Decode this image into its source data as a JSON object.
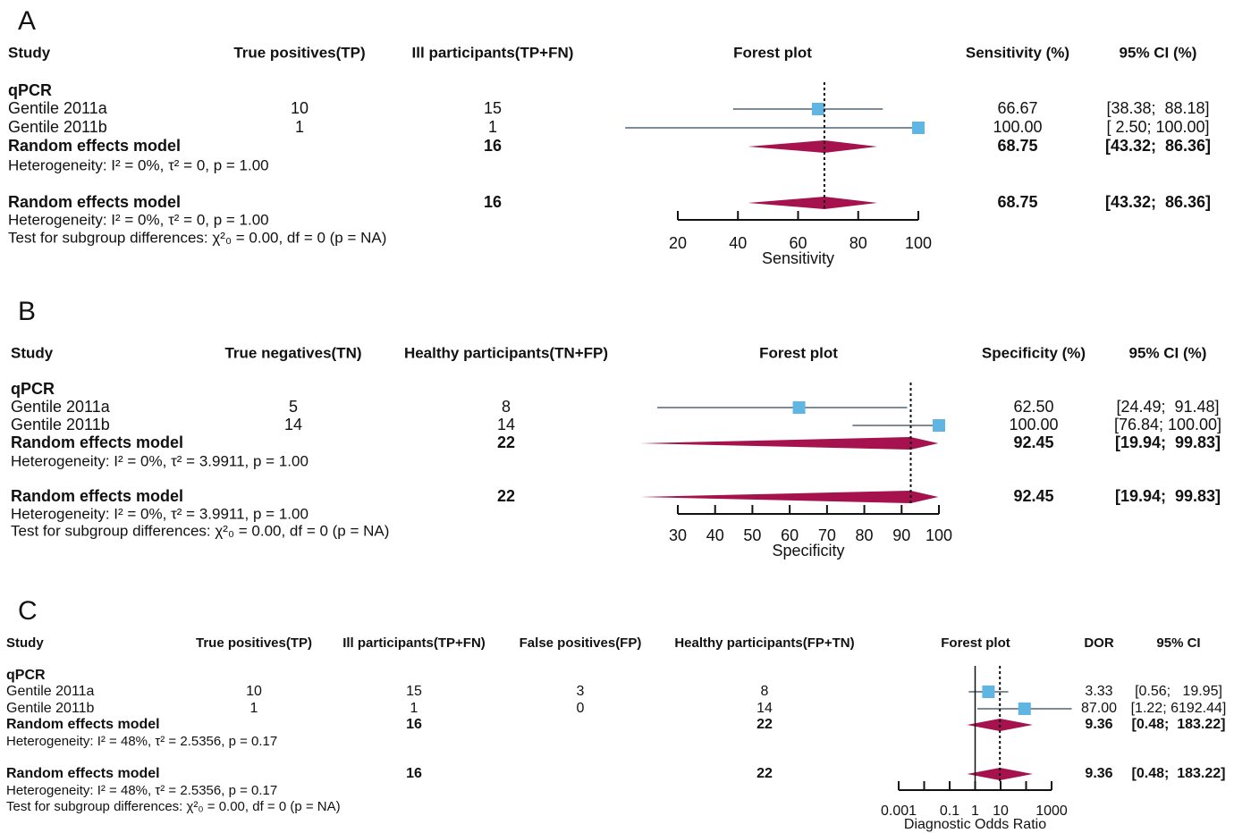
{
  "chart_data": [
    {
      "type": "forest",
      "panel": "A",
      "columns": [
        "Study",
        "True positives(TP)",
        "Ill participants(TP+FN)",
        "Forest plot",
        "Sensitivity (%)",
        "95% CI (%)"
      ],
      "group": "qPCR",
      "studies": [
        {
          "name": "Gentile 2011a",
          "counts": [
            10,
            15
          ],
          "estimate": 66.67,
          "ci": [
            38.38,
            88.18
          ],
          "ci_label": "[38.38;  88.18]"
        },
        {
          "name": "Gentile 2011b",
          "counts": [
            1,
            1
          ],
          "estimate": 100,
          "estimate_label": "100.00",
          "ci": [
            2.5,
            100
          ],
          "ci_label": "[ 2.50; 100.00]"
        }
      ],
      "subgroup": {
        "name": "Random effects model",
        "totals": [
          null,
          16
        ],
        "estimate": 68.75,
        "ci": [
          43.32,
          86.36
        ],
        "ci_label": "[43.32;  86.36]",
        "heterogeneity": "Heterogeneity: I² = 0%, τ² = 0, p = 1.00"
      },
      "overall": {
        "name": "Random effects model",
        "totals": [
          null,
          16
        ],
        "estimate": 68.75,
        "ci": [
          43.32,
          86.36
        ],
        "ci_label": "[43.32;  86.36]",
        "heterogeneity": "Heterogeneity: I² = 0%, τ² = 0, p = 1.00",
        "test": "Test for subgroup differences: χ²₀ = 0.00, df = 0 (p = NA)"
      },
      "xlim": [
        20,
        100
      ],
      "xticks": [
        20,
        40,
        60,
        80,
        100
      ],
      "xlabel": "Sensitivity",
      "log": false,
      "colors": {
        "study": "#5fb6e2",
        "ci": "#7d8b99",
        "pooled": "#a5124e",
        "muted": "#9a9a9a"
      }
    },
    {
      "type": "forest",
      "panel": "B",
      "columns": [
        "Study",
        "True negatives(TN)",
        "Healthy participants(TN+FP)",
        "Forest plot",
        "Specificity (%)",
        "95% CI (%)"
      ],
      "group": "qPCR",
      "studies": [
        {
          "name": "Gentile 2011a",
          "counts": [
            5,
            8
          ],
          "estimate": 62.5,
          "estimate_label": "62.50",
          "ci": [
            24.49,
            91.48
          ],
          "ci_label": "[24.49;  91.48]"
        },
        {
          "name": "Gentile 2011b",
          "counts": [
            14,
            14
          ],
          "estimate": 100,
          "estimate_label": "100.00",
          "ci": [
            76.84,
            100
          ],
          "ci_label": "[76.84; 100.00]"
        }
      ],
      "subgroup": {
        "name": "Random effects model",
        "totals": [
          null,
          22
        ],
        "estimate": 92.45,
        "ci": [
          19.94,
          99.83
        ],
        "ci_label": "[19.94;  99.83]",
        "heterogeneity": "Heterogeneity: I² = 0%, τ² = 3.9911, p = 1.00"
      },
      "overall": {
        "name": "Random effects model",
        "totals": [
          null,
          22
        ],
        "estimate": 92.45,
        "ci": [
          19.94,
          99.83
        ],
        "ci_label": "[19.94;  99.83]",
        "heterogeneity": "Heterogeneity: I² = 0%, τ² = 3.9911, p = 1.00",
        "test": "Test for subgroup differences: χ²₀ = 0.00, df = 0 (p = NA)"
      },
      "xlim": [
        30,
        100
      ],
      "xticks": [
        30,
        40,
        50,
        60,
        70,
        80,
        90,
        100
      ],
      "xlabel": "Specificity",
      "log": false,
      "colors": {
        "study": "#5fb6e2",
        "ci": "#7d8b99",
        "pooled": "#a5124e",
        "muted": "#9a9a9a"
      }
    },
    {
      "type": "forest",
      "panel": "C",
      "columns": [
        "Study",
        "True positives(TP)",
        "Ill participants(TP+FN)",
        "False positives(FP)",
        "Healthy participants(FP+TN)",
        "Forest plot",
        "DOR",
        "95% CI"
      ],
      "group": "qPCR",
      "studies": [
        {
          "name": "Gentile 2011a",
          "counts": [
            10,
            15,
            3,
            8
          ],
          "estimate": 3.33,
          "ci": [
            0.56,
            19.95
          ],
          "ci_label": "[0.56;   19.95]"
        },
        {
          "name": "Gentile 2011b",
          "counts": [
            1,
            1,
            0,
            14
          ],
          "estimate": 87,
          "estimate_label": "87.00",
          "ci": [
            1.22,
            6192.44
          ],
          "ci_label": "[1.22; 6192.44]"
        }
      ],
      "subgroup": {
        "name": "Random effects model",
        "totals": [
          null,
          16,
          null,
          22
        ],
        "estimate": 9.36,
        "ci": [
          0.48,
          183.22
        ],
        "ci_label": "[0.48;  183.22]",
        "heterogeneity": "Heterogeneity: I² = 48%, τ² = 2.5356, p = 0.17"
      },
      "overall": {
        "name": "Random effects model",
        "totals": [
          null,
          16,
          null,
          22
        ],
        "estimate": 9.36,
        "ci": [
          0.48,
          183.22
        ],
        "ci_label": "[0.48;  183.22]",
        "heterogeneity": "Heterogeneity: I² = 48%, τ² = 2.5356, p = 0.17",
        "test": "Test for subgroup differences: χ²₀ = 0.00, df = 0 (p = NA)"
      },
      "xlim": [
        0.001,
        1000
      ],
      "xticks": [
        0.001,
        {
          "value": 0.01,
          "label": null
        },
        0.1,
        1,
        10,
        {
          "value": 100,
          "label": null
        },
        1000
      ],
      "xlabel": "Diagnostic Odds Ratio",
      "log": true,
      "reference_line": 1,
      "colors": {
        "study": "#5fb6e2",
        "ci": "#7d8b99",
        "pooled": "#a5124e",
        "muted": "#9a9a9a"
      }
    }
  ]
}
